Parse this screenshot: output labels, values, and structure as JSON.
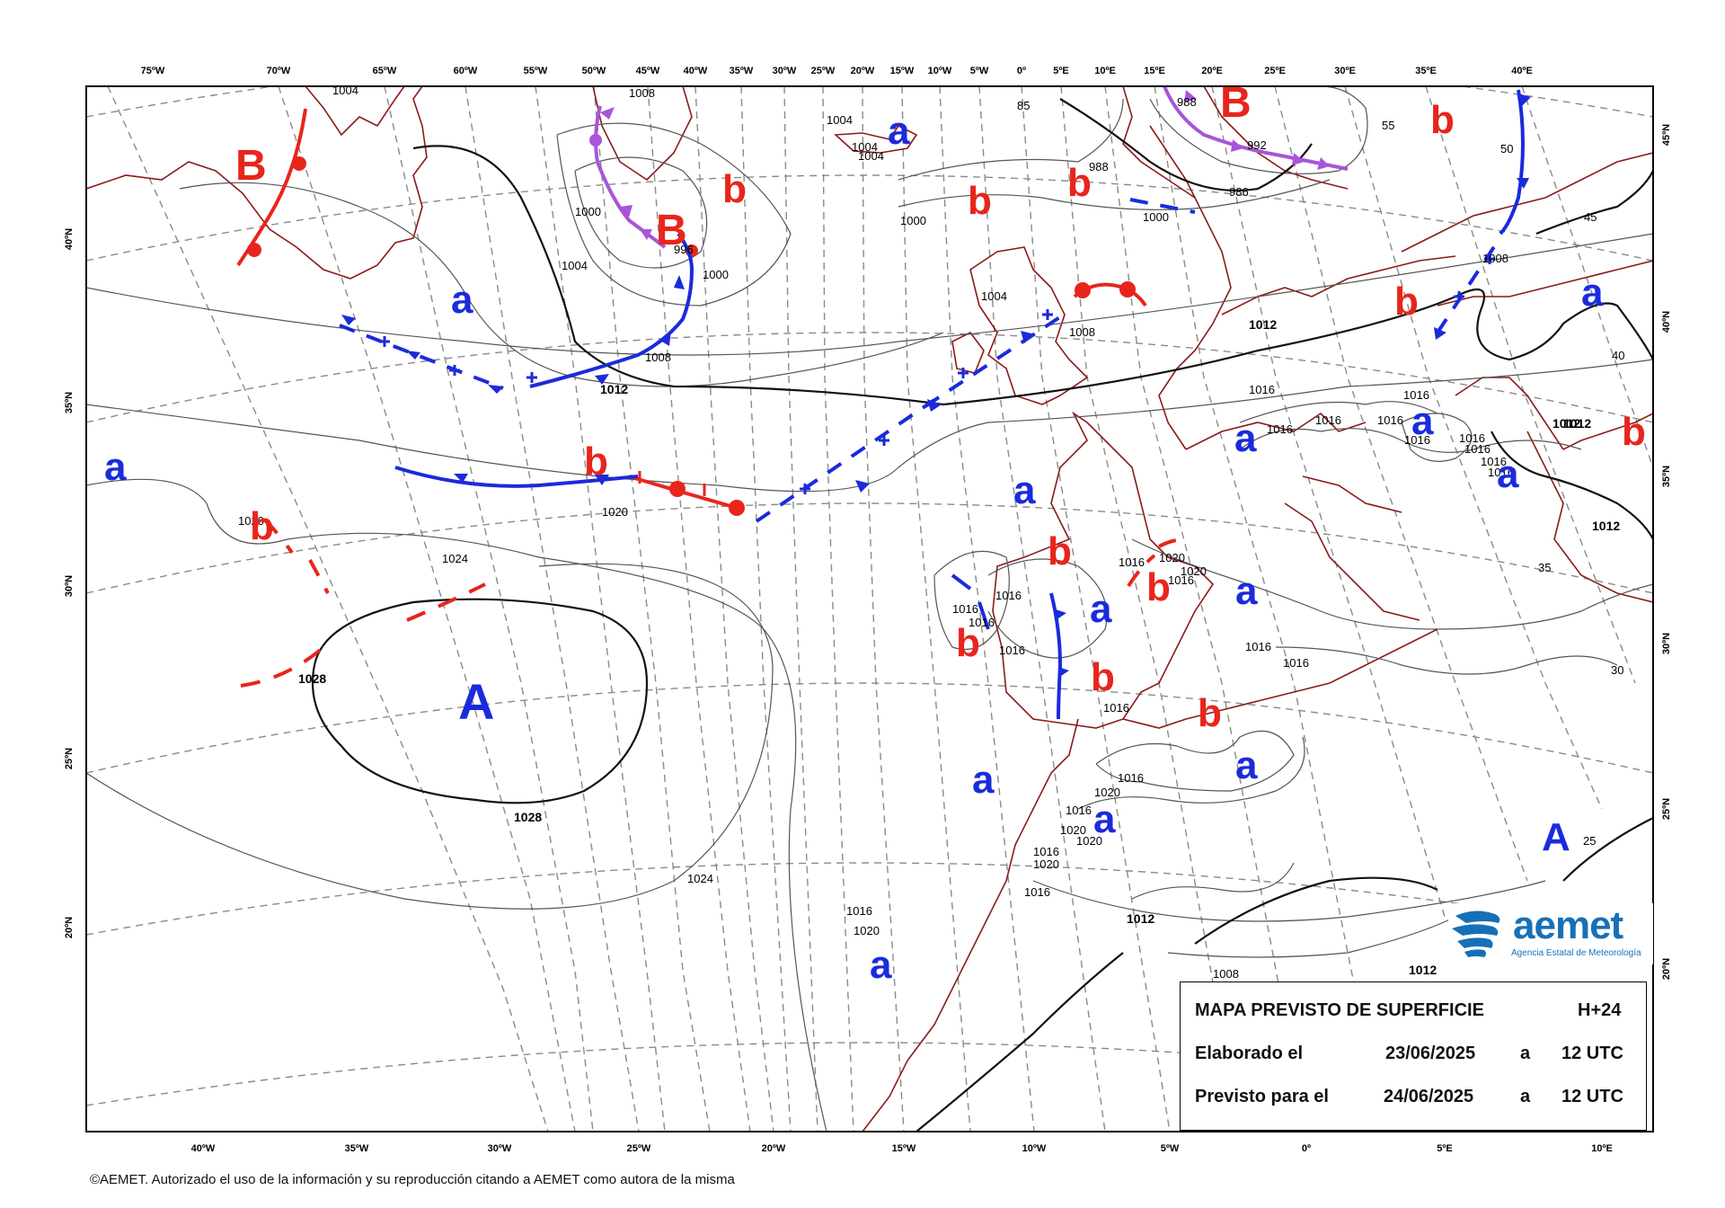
{
  "legend": {
    "title": "MAPA PREVISTO DE SUPERFICIE",
    "lead": "H+24",
    "row1_label": "Elaborado el",
    "row1_date": "23/06/2025",
    "row1_a": "a",
    "row1_time": "12 UTC",
    "row2_label": "Previsto para el",
    "row2_date": "24/06/2025",
    "row2_a": "a",
    "row2_time": "12 UTC"
  },
  "logo": {
    "word": "aemet",
    "subtitle": "Agencia Estatal de Meteorología"
  },
  "copyright": "©AEMET. Autorizado el uso de la información y su reproducción citando a AEMET como autora de la misma",
  "colors": {
    "high": "#1a2bdc",
    "low": "#e8251c",
    "warm_front": "#e8251c",
    "cold_front": "#1a2bdc",
    "occluded_front": "#a855d8",
    "coast": "#8b1a1a"
  },
  "top_ticks": [
    "75ºW",
    "70ºW",
    "65ºW",
    "60ºW",
    "55ºW",
    "50ºW",
    "45ºW",
    "40ºW",
    "35ºW",
    "30ºW",
    "25ºW",
    "20ºW",
    "15ºW",
    "10ºW",
    "5ºW",
    "0º",
    "5ºE",
    "10ºE",
    "15ºE",
    "20ºE",
    "25ºE",
    "30ºE",
    "35ºE",
    "40ºE"
  ],
  "bottom_ticks": [
    "40ºW",
    "35ºW",
    "30ºW",
    "25ºW",
    "20ºW",
    "15ºW",
    "10ºW",
    "5ºW",
    "0º",
    "5ºE",
    "10ºE"
  ],
  "left_ticks": [
    "40ºN",
    "35ºN",
    "30ºN",
    "25ºN",
    "20ºN"
  ],
  "right_ticks": [
    "45ºN",
    "40ºN",
    "35ºN",
    "30ºN",
    "25ºN",
    "20ºN"
  ],
  "pressure_centers": [
    {
      "label": "B",
      "kind": "low_major"
    },
    {
      "label": "b",
      "kind": "low_minor"
    },
    {
      "label": "B",
      "kind": "low_major"
    },
    {
      "label": "b",
      "kind": "low_minor"
    },
    {
      "label": "b",
      "kind": "low_minor"
    },
    {
      "label": "b",
      "kind": "low_minor"
    },
    {
      "label": "B",
      "kind": "low_major"
    },
    {
      "label": "b",
      "kind": "low_minor"
    },
    {
      "label": "b",
      "kind": "low_minor"
    },
    {
      "label": "b",
      "kind": "low_minor"
    },
    {
      "label": "b",
      "kind": "low_minor"
    },
    {
      "label": "b",
      "kind": "low_minor"
    },
    {
      "label": "b",
      "kind": "low_minor"
    },
    {
      "label": "b",
      "kind": "low_minor"
    },
    {
      "label": "b",
      "kind": "low_minor"
    },
    {
      "label": "b",
      "kind": "low_minor"
    },
    {
      "label": "a",
      "kind": "high_minor"
    },
    {
      "label": "a",
      "kind": "high_minor"
    },
    {
      "label": "a",
      "kind": "high_minor"
    },
    {
      "label": "a",
      "kind": "high_minor"
    },
    {
      "label": "a",
      "kind": "high_minor"
    },
    {
      "label": "a",
      "kind": "high_minor"
    },
    {
      "label": "a",
      "kind": "high_minor"
    },
    {
      "label": "a",
      "kind": "high_minor"
    },
    {
      "label": "a",
      "kind": "high_minor"
    },
    {
      "label": "a",
      "kind": "high_minor"
    },
    {
      "label": "a",
      "kind": "high_minor"
    },
    {
      "label": "a",
      "kind": "high_minor"
    },
    {
      "label": "a",
      "kind": "high_minor"
    },
    {
      "label": "a",
      "kind": "high_minor"
    },
    {
      "label": "A",
      "kind": "high_major"
    },
    {
      "label": "A",
      "kind": "high_major"
    }
  ],
  "isobar_labels": [
    "1004",
    "1008",
    "1004",
    "1000",
    "1004",
    "996",
    "1000",
    "1008",
    "1012",
    "1004",
    "1004",
    "1000",
    "1004",
    "1008",
    "1012",
    "1016",
    "1016",
    "1016",
    "1016",
    "1016",
    "1016",
    "1016",
    "1012",
    "1020",
    "1024",
    "1028",
    "1028",
    "1024",
    "1020",
    "1020",
    "1016",
    "1016",
    "1016",
    "1016",
    "1016",
    "1020",
    "1016",
    "1016",
    "1020",
    "1016",
    "1016",
    "1016",
    "1016",
    "1020",
    "1016",
    "1020",
    "1016",
    "1020",
    "1012",
    "1008",
    "1012",
    "1012",
    "992",
    "988",
    "988",
    "986",
    "1000",
    "1008",
    "1016",
    "1016",
    "1016",
    "1012",
    "55",
    "45",
    "40",
    "35",
    "30",
    "25",
    "85",
    "50",
    "1020",
    "1016"
  ]
}
